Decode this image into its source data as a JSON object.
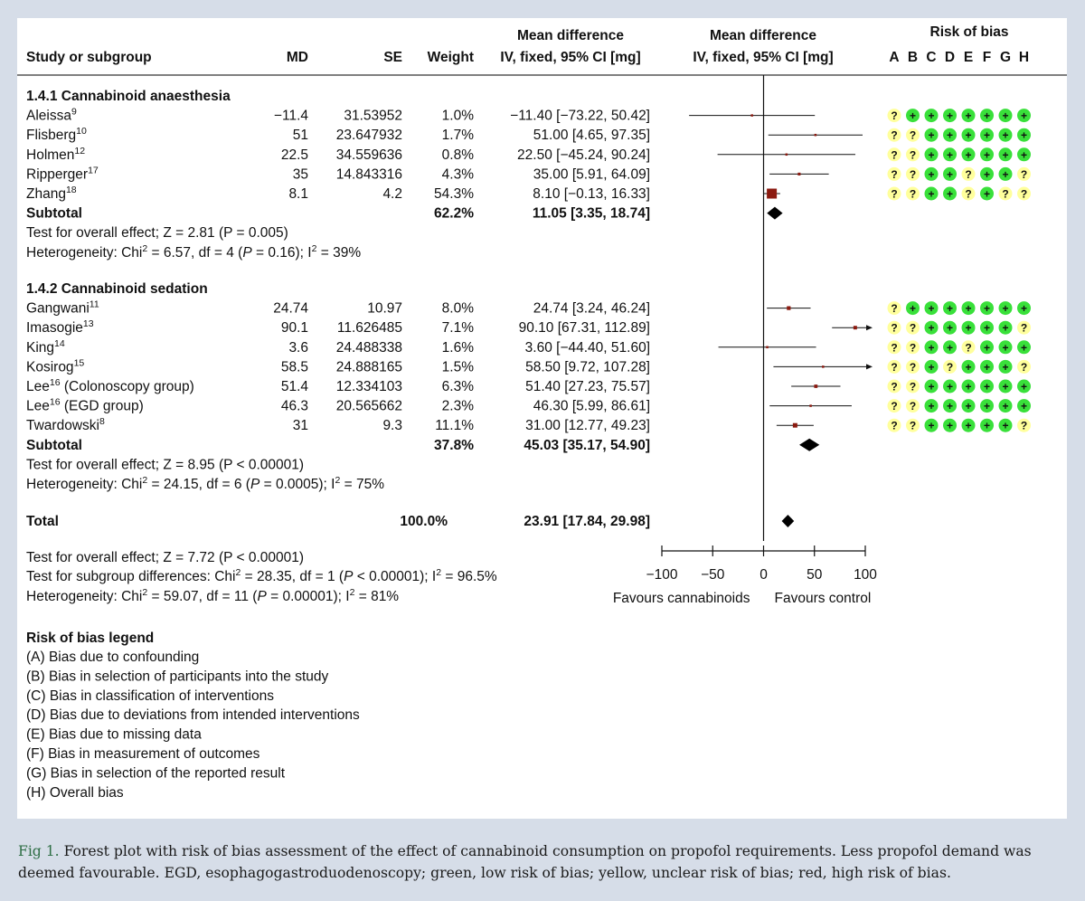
{
  "headers": {
    "study": "Study or subgroup",
    "md": "MD",
    "se": "SE",
    "weight": "Weight",
    "ci_top": "Mean difference",
    "ci_bottom": "IV, fixed, 95% CI [mg]",
    "plot_top": "Mean difference",
    "plot_bottom": "IV, fixed, 95% CI [mg]",
    "rob_title": "Risk of bias",
    "rob_cols": [
      "A",
      "B",
      "C",
      "D",
      "E",
      "F",
      "G",
      "H"
    ]
  },
  "groups": [
    {
      "title": "1.4.1 Cannabinoid anaesthesia",
      "studies": [
        {
          "name": "Aleissa",
          "ref": "9",
          "md": "−11.4",
          "se": "31.53952",
          "weight": "1.0%",
          "ci": "−11.40 [−73.22, 50.42]",
          "est": -11.4,
          "lo": -73.22,
          "hi": 50.42,
          "w": 1.0,
          "rob": [
            "?",
            "+",
            "+",
            "+",
            "+",
            "+",
            "+",
            "+"
          ]
        },
        {
          "name": "Flisberg",
          "ref": "10",
          "md": "51",
          "se": "23.647932",
          "weight": "1.7%",
          "ci": "51.00 [4.65, 97.35]",
          "est": 51.0,
          "lo": 4.65,
          "hi": 97.35,
          "w": 1.7,
          "rob": [
            "?",
            "?",
            "+",
            "+",
            "+",
            "+",
            "+",
            "+"
          ]
        },
        {
          "name": "Holmen",
          "ref": "12",
          "md": "22.5",
          "se": "34.559636",
          "weight": "0.8%",
          "ci": "22.50 [−45.24, 90.24]",
          "est": 22.5,
          "lo": -45.24,
          "hi": 90.24,
          "w": 0.8,
          "rob": [
            "?",
            "?",
            "+",
            "+",
            "+",
            "+",
            "+",
            "+"
          ]
        },
        {
          "name": "Ripperger",
          "ref": "17",
          "md": "35",
          "se": "14.843316",
          "weight": "4.3%",
          "ci": "35.00 [5.91, 64.09]",
          "est": 35.0,
          "lo": 5.91,
          "hi": 64.09,
          "w": 4.3,
          "rob": [
            "?",
            "?",
            "+",
            "+",
            "?",
            "+",
            "+",
            "?"
          ]
        },
        {
          "name": "Zhang",
          "ref": "18",
          "md": "8.1",
          "se": "4.2",
          "weight": "54.3%",
          "ci": "8.10 [−0.13, 16.33]",
          "est": 8.1,
          "lo": -0.13,
          "hi": 16.33,
          "w": 54.3,
          "rob": [
            "?",
            "?",
            "+",
            "+",
            "?",
            "+",
            "?",
            "?"
          ]
        }
      ],
      "subtotal": {
        "label": "Subtotal",
        "weight": "62.2%",
        "ci": "11.05 [3.35, 18.74]",
        "est": 11.05,
        "lo": 3.35,
        "hi": 18.74
      },
      "effect": "Test for overall effect; Z = 2.81 (P = 0.005)",
      "het": {
        "pre": "Heterogeneity: Chi",
        "sup1": "2",
        "mid": " = 6.57, df = 4 (",
        "p": "P",
        "post": " = 0.16); I",
        "sup2": "2",
        "end": " = 39%"
      }
    },
    {
      "title": "1.4.2 Cannabinoid sedation",
      "studies": [
        {
          "name": "Gangwani",
          "ref": "11",
          "md": "24.74",
          "se": "10.97",
          "weight": "8.0%",
          "ci": "24.74 [3.24, 46.24]",
          "est": 24.74,
          "lo": 3.24,
          "hi": 46.24,
          "w": 8.0,
          "rob": [
            "?",
            "+",
            "+",
            "+",
            "+",
            "+",
            "+",
            "+"
          ]
        },
        {
          "name": "Imasogie",
          "ref": "13",
          "md": "90.1",
          "se": "11.626485",
          "weight": "7.1%",
          "ci": "90.10 [67.31, 112.89]",
          "est": 90.1,
          "lo": 67.31,
          "hi": 112.89,
          "w": 7.1,
          "rob": [
            "?",
            "?",
            "+",
            "+",
            "+",
            "+",
            "+",
            "?"
          ]
        },
        {
          "name": "King",
          "ref": "14",
          "md": "3.6",
          "se": "24.488338",
          "weight": "1.6%",
          "ci": "3.60 [−44.40, 51.60]",
          "est": 3.6,
          "lo": -44.4,
          "hi": 51.6,
          "w": 1.6,
          "rob": [
            "?",
            "?",
            "+",
            "+",
            "?",
            "+",
            "+",
            "+"
          ]
        },
        {
          "name": "Kosirog",
          "ref": "15",
          "md": "58.5",
          "se": "24.888165",
          "weight": "1.5%",
          "ci": "58.50 [9.72, 107.28]",
          "est": 58.5,
          "lo": 9.72,
          "hi": 107.28,
          "w": 1.5,
          "rob": [
            "?",
            "?",
            "+",
            "?",
            "+",
            "+",
            "+",
            "?"
          ]
        },
        {
          "name": "Lee",
          "ref": "16",
          "suffix": " (Colonoscopy group)",
          "md": "51.4",
          "se": "12.334103",
          "weight": "6.3%",
          "ci": "51.40 [27.23, 75.57]",
          "est": 51.4,
          "lo": 27.23,
          "hi": 75.57,
          "w": 6.3,
          "rob": [
            "?",
            "?",
            "+",
            "+",
            "+",
            "+",
            "+",
            "+"
          ]
        },
        {
          "name": "Lee",
          "ref": "16",
          "suffix": " (EGD group)",
          "md": "46.3",
          "se": "20.565662",
          "weight": "2.3%",
          "ci": "46.30 [5.99, 86.61]",
          "est": 46.3,
          "lo": 5.99,
          "hi": 86.61,
          "w": 2.3,
          "rob": [
            "?",
            "?",
            "+",
            "+",
            "+",
            "+",
            "+",
            "+"
          ]
        },
        {
          "name": "Twardowski",
          "ref": "8",
          "md": "31",
          "se": "9.3",
          "weight": "11.1%",
          "ci": "31.00 [12.77, 49.23]",
          "est": 31.0,
          "lo": 12.77,
          "hi": 49.23,
          "w": 11.1,
          "rob": [
            "?",
            "?",
            "+",
            "+",
            "+",
            "+",
            "+",
            "?"
          ]
        }
      ],
      "subtotal": {
        "label": "Subtotal",
        "weight": "37.8%",
        "ci": "45.03 [35.17, 54.90]",
        "est": 45.03,
        "lo": 35.17,
        "hi": 54.9
      },
      "effect": "Test for overall effect; Z = 8.95 (P < 0.00001)",
      "het": {
        "pre": "Heterogeneity: Chi",
        "sup1": "2",
        "mid": " = 24.15, df = 6 (",
        "p": "P",
        "post": " = 0.0005); I",
        "sup2": "2",
        "end": " = 75%"
      }
    }
  ],
  "total": {
    "label": "Total",
    "weight": "100.0%",
    "ci": "23.91 [17.84, 29.98]",
    "est": 23.91,
    "lo": 17.84,
    "hi": 29.98
  },
  "footer": {
    "effect": "Test for overall effect; Z = 7.72 (P < 0.00001)",
    "subgroup": {
      "pre": "Test for subgroup differences: Chi",
      "sup1": "2",
      "mid": " = 28.35, df = 1 (",
      "p": "P",
      "post": " < 0.00001); I",
      "sup2": "2",
      "end": " = 96.5%"
    },
    "het": {
      "pre": "Heterogeneity: Chi",
      "sup1": "2",
      "mid": " = 59.07, df = 11 (",
      "p": "P",
      "post": " = 0.00001); I",
      "sup2": "2",
      "end": " = 81%"
    }
  },
  "axis": {
    "min": -100,
    "max": 100,
    "ticks": [
      -100,
      -50,
      0,
      50,
      100
    ],
    "tick_labels": [
      "−100",
      "−50",
      "0",
      "50",
      "100"
    ],
    "favours_left": "Favours cannabinoids",
    "favours_right": "Favours control"
  },
  "legend": {
    "title": "Risk of bias legend",
    "items": [
      "(A) Bias due to confounding",
      "(B) Bias in selection of participants into the study",
      "(C) Bias in classification of interventions",
      "(D) Bias due to deviations from intended interventions",
      "(E) Bias due to missing data",
      "(F) Bias in measurement of outcomes",
      "(G) Bias in selection of the reported result",
      "(H) Overall bias"
    ]
  },
  "caption": {
    "label": "Fig 1.",
    "text": " Forest plot with risk of bias assessment of the effect of cannabinoid consumption on propofol requirements. Less propofol demand was deemed favourable. EGD, esophagogastroduodenoscopy; green, low risk of bias; yellow, unclear risk of bias; red, high risk of bias."
  },
  "colors": {
    "low_risk": "#39e03a",
    "unclear_risk": "#ffff9c",
    "study_marker": "#8b1a10",
    "diamond": "#000000",
    "figure_label": "#2e6e45",
    "page_background": "#d6dde8"
  },
  "chart_data": {
    "type": "forest",
    "xlim": [
      -100,
      100
    ],
    "xlabel_left": "Favours cannabinoids",
    "xlabel_right": "Favours control"
  }
}
